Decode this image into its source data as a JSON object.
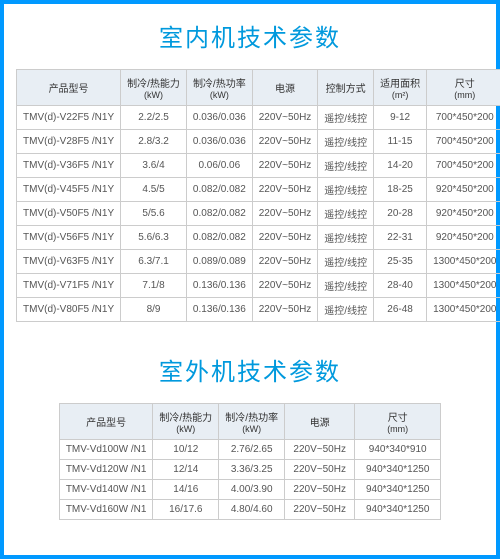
{
  "section1": {
    "title": "室内机技术参数",
    "columns": [
      {
        "label": "产品型号",
        "sub": ""
      },
      {
        "label": "制冷/热能力",
        "sub": "(kW)"
      },
      {
        "label": "制冷/热功率",
        "sub": "(kW)"
      },
      {
        "label": "电源",
        "sub": ""
      },
      {
        "label": "控制方式",
        "sub": ""
      },
      {
        "label": "适用面积",
        "sub": "(m²)"
      },
      {
        "label": "尺寸",
        "sub": "(mm)"
      }
    ],
    "rows": [
      [
        "TMV(d)-V22F5 /N1Y",
        "2.2/2.5",
        "0.036/0.036",
        "220V~50Hz",
        "遥控/线控",
        "9-12",
        "700*450*200"
      ],
      [
        "TMV(d)-V28F5 /N1Y",
        "2.8/3.2",
        "0.036/0.036",
        "220V~50Hz",
        "遥控/线控",
        "11-15",
        "700*450*200"
      ],
      [
        "TMV(d)-V36F5 /N1Y",
        "3.6/4",
        "0.06/0.06",
        "220V~50Hz",
        "遥控/线控",
        "14-20",
        "700*450*200"
      ],
      [
        "TMV(d)-V45F5 /N1Y",
        "4.5/5",
        "0.082/0.082",
        "220V~50Hz",
        "遥控/线控",
        "18-25",
        "920*450*200"
      ],
      [
        "TMV(d)-V50F5 /N1Y",
        "5/5.6",
        "0.082/0.082",
        "220V~50Hz",
        "遥控/线控",
        "20-28",
        "920*450*200"
      ],
      [
        "TMV(d)-V56F5 /N1Y",
        "5.6/6.3",
        "0.082/0.082",
        "220V~50Hz",
        "遥控/线控",
        "22-31",
        "920*450*200"
      ],
      [
        "TMV(d)-V63F5 /N1Y",
        "6.3/7.1",
        "0.089/0.089",
        "220V~50Hz",
        "遥控/线控",
        "25-35",
        "1300*450*200"
      ],
      [
        "TMV(d)-V71F5 /N1Y",
        "7.1/8",
        "0.136/0.136",
        "220V~50Hz",
        "遥控/线控",
        "28-40",
        "1300*450*200"
      ],
      [
        "TMV(d)-V80F5 /N1Y",
        "8/9",
        "0.136/0.136",
        "220V~50Hz",
        "遥控/线控",
        "26-48",
        "1300*450*200"
      ]
    ]
  },
  "section2": {
    "title": "室外机技术参数",
    "columns": [
      {
        "label": "产品型号",
        "sub": ""
      },
      {
        "label": "制冷/热能力",
        "sub": "(kW)"
      },
      {
        "label": "制冷/热功率",
        "sub": "(kW)"
      },
      {
        "label": "电源",
        "sub": ""
      },
      {
        "label": "尺寸",
        "sub": "(mm)"
      }
    ],
    "rows": [
      [
        "TMV-Vd100W /N1",
        "10/12",
        "2.76/2.65",
        "220V~50Hz",
        "940*340*910"
      ],
      [
        "TMV-Vd120W /N1",
        "12/14",
        "3.36/3.25",
        "220V~50Hz",
        "940*340*1250"
      ],
      [
        "TMV-Vd140W /N1",
        "14/16",
        "4.00/3.90",
        "220V~50Hz",
        "940*340*1250"
      ],
      [
        "TMV-Vd160W /N1",
        "16/17.6",
        "4.80/4.60",
        "220V~50Hz",
        "940*340*1250"
      ]
    ]
  },
  "styling": {
    "border_color": "#0099ff",
    "title_color": "#0099dd",
    "title_fontsize": 24,
    "header_bg": "#e8eef4",
    "cell_border": "#cccccc",
    "text_color": "#555555",
    "body_fontsize": 10
  }
}
